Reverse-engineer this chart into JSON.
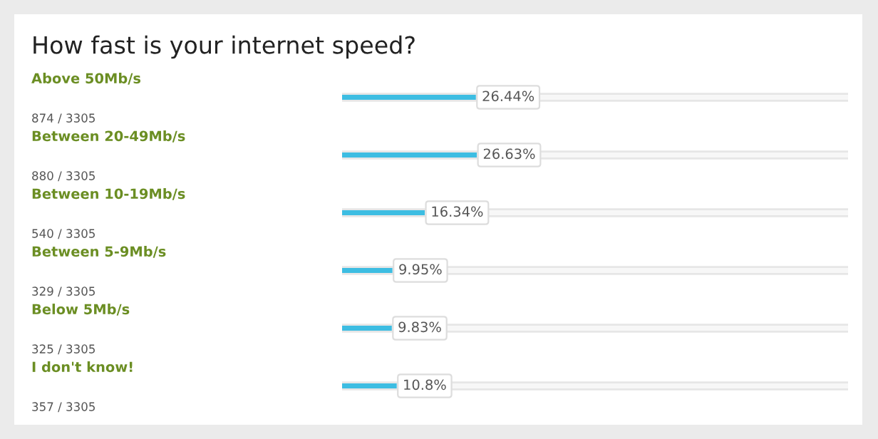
{
  "chart_data": {
    "type": "bar",
    "orientation": "horizontal",
    "title": "How fast is your internet speed?",
    "categories": [
      "Above 50Mb/s",
      "Between 20-49Mb/s",
      "Between 10-19Mb/s",
      "Between 5-9Mb/s",
      "Below 5Mb/s",
      "I don't know!"
    ],
    "values": [
      26.44,
      26.63,
      16.34,
      9.95,
      9.83,
      10.8
    ],
    "value_labels": [
      "26.44%",
      "26.63%",
      "16.34%",
      "9.95%",
      "9.83%",
      "10.8%"
    ],
    "annotations": [
      "874 / 3305",
      "880 / 3305",
      "540 / 3305",
      "329 / 3305",
      "325 / 3305",
      "357 / 3305"
    ],
    "color": "#3dbde2",
    "tick_labels": false,
    "grid": false,
    "legend": false
  }
}
